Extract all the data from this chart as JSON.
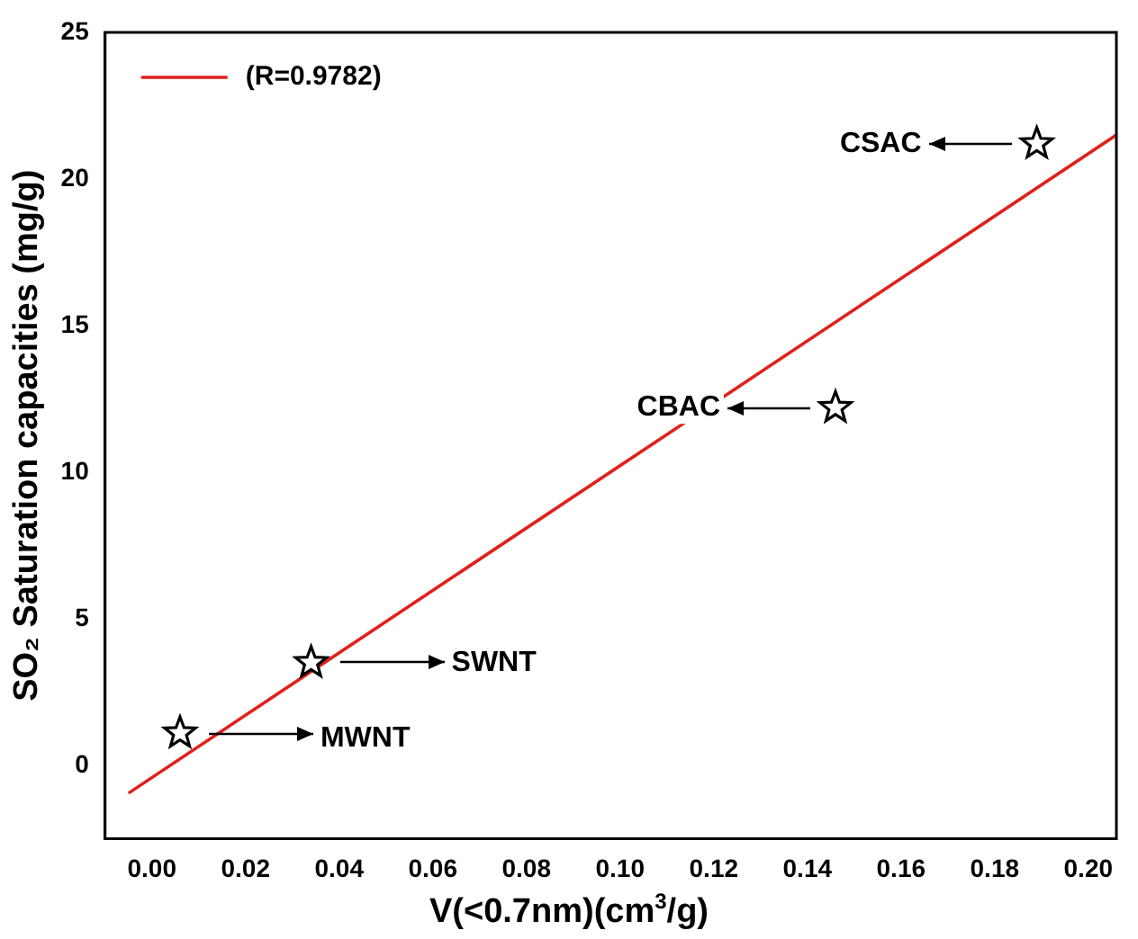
{
  "chart_data": {
    "type": "scatter",
    "xlabel": "V(<0.7nm)(cm$^{3}$/g)",
    "ylabel": "SO₂ Saturation capacities (mg/g)",
    "xlim": [
      -0.01,
      0.206
    ],
    "ylim": [
      -2.5,
      25
    ],
    "xticks": [
      {
        "value": 0,
        "label": "0.00"
      },
      {
        "value": 0.02,
        "label": "0.02"
      },
      {
        "value": 0.04,
        "label": "0.04"
      },
      {
        "value": 0.06,
        "label": "0.06"
      },
      {
        "value": 0.08,
        "label": "0.08"
      },
      {
        "value": 0.1,
        "label": "0.10"
      },
      {
        "value": 0.12,
        "label": "0.12"
      },
      {
        "value": 0.14,
        "label": "0.14"
      },
      {
        "value": 0.16,
        "label": "0.16"
      },
      {
        "value": 0.18,
        "label": "0.18"
      },
      {
        "value": 0.2,
        "label": "0.20"
      }
    ],
    "yticks": [
      0,
      5,
      10,
      15,
      20,
      25
    ],
    "grid": false,
    "legend": "top left",
    "marker": "star",
    "series": [
      {
        "color": "#000000",
        "x": [
          0.006,
          0.034,
          0.146,
          0.189
        ],
        "values": [
          1.1,
          3.5,
          12.2,
          21.2
        ]
      },
      {
        "type": "line",
        "name": "(R=0.9782)",
        "color": "#e0201b",
        "x": [
          -0.005,
          0.206
        ],
        "values": [
          -0.95,
          21.5
        ],
        "marker": "none"
      }
    ],
    "annotations": [
      "MWNT",
      "SWNT",
      "CBAC",
      "CSAC"
    ]
  }
}
